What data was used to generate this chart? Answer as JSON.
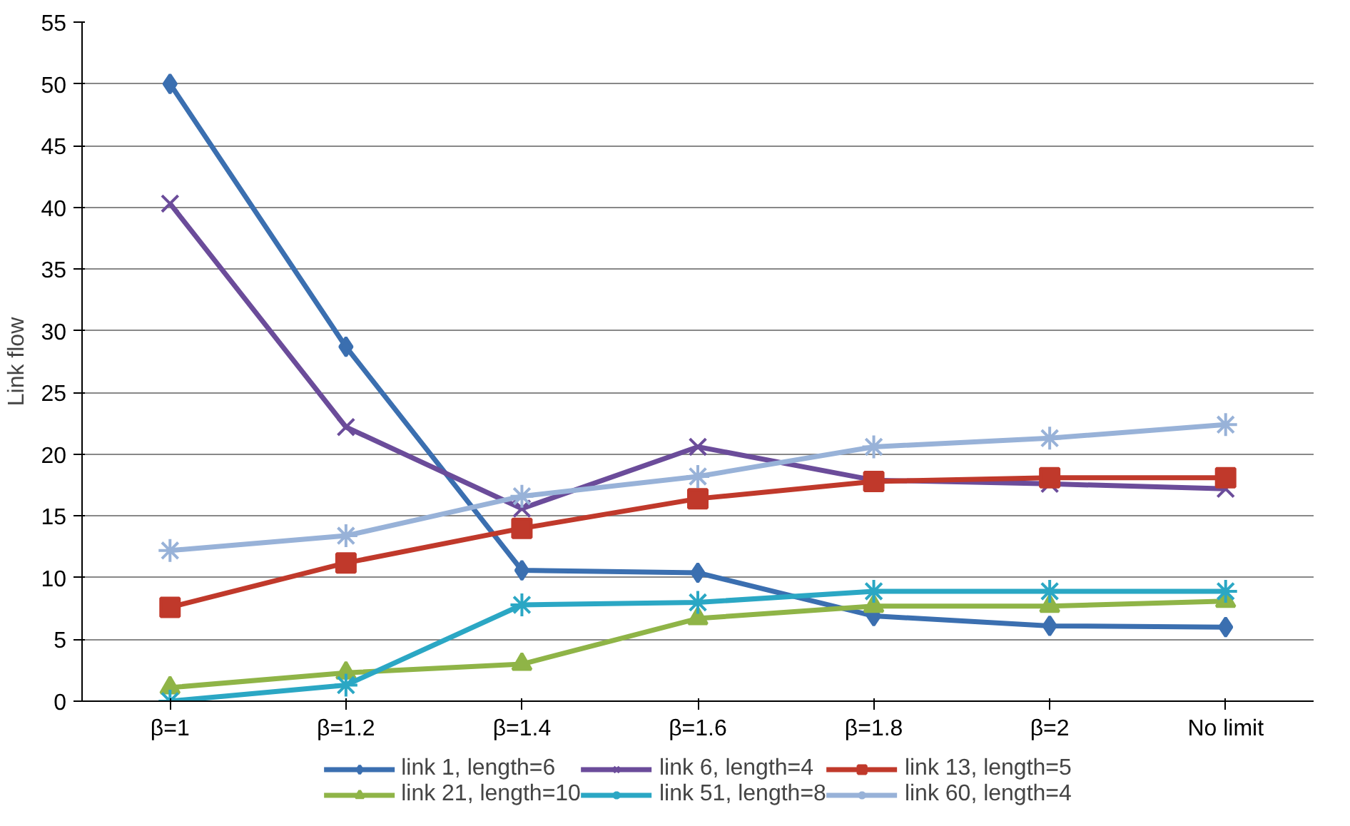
{
  "chart_data": {
    "type": "line",
    "ylabel": "Link flow",
    "categories": [
      "β=1",
      "β=1.2",
      "β=1.4",
      "β=1.6",
      "β=1.8",
      "β=2",
      "No limit"
    ],
    "ylim": [
      0,
      55
    ],
    "yticks": [
      0,
      5,
      10,
      15,
      20,
      25,
      30,
      35,
      40,
      45,
      50,
      55
    ],
    "grid": "y",
    "legend": "bottom",
    "series": [
      {
        "name": "link 1, length=6",
        "color": "#3b6fb0",
        "marker": "diamond",
        "values": [
          50,
          28.7,
          10.6,
          10.4,
          6.9,
          6.1,
          6.0
        ]
      },
      {
        "name": "link 6, length=4",
        "color": "#6b4c9a",
        "marker": "x",
        "values": [
          40.3,
          22.2,
          15.6,
          20.6,
          17.9,
          17.6,
          17.2
        ]
      },
      {
        "name": "link 13, length=5",
        "color": "#c0392b",
        "marker": "square",
        "values": [
          7.6,
          11.2,
          14.0,
          16.4,
          17.8,
          18.1,
          18.1
        ]
      },
      {
        "name": "link 21, length=10",
        "color": "#8fb447",
        "marker": "triangle",
        "values": [
          1.1,
          2.3,
          3.0,
          6.7,
          7.7,
          7.7,
          8.1
        ]
      },
      {
        "name": "link 51, length=8",
        "color": "#2ba7c4",
        "marker": "cross",
        "values": [
          0,
          1.3,
          7.8,
          8.0,
          8.9,
          8.9,
          8.9
        ]
      },
      {
        "name": "link 60, length=4",
        "color": "#98b2d8",
        "marker": "cross",
        "values": [
          12.2,
          13.4,
          16.6,
          18.2,
          20.6,
          21.3,
          22.4
        ]
      }
    ]
  }
}
